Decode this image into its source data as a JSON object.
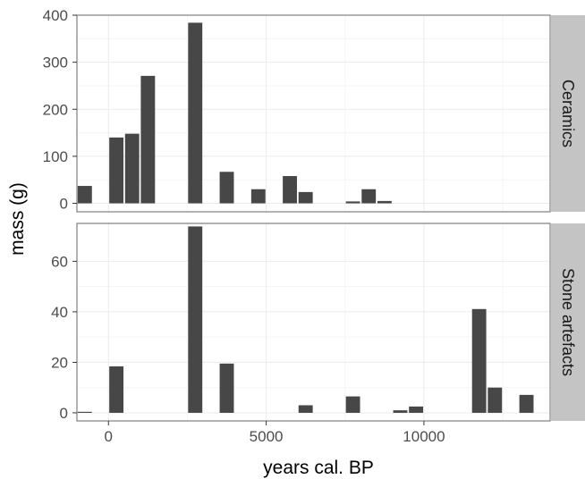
{
  "colors": {
    "panel_background": "#ffffff",
    "panel_border": "#7f7f7f",
    "grid_major": "#ebebeb",
    "grid_minor": "#f5f5f5",
    "bar_fill": "#474747",
    "strip_background": "#c4c4c4"
  },
  "chart_data": {
    "type": "bar",
    "layout": "faceted, two panels stacked vertically, shared x axis, free y axes",
    "grid": true,
    "legend": "none",
    "xlabel": "years cal. BP",
    "ylabel": "mass (g)",
    "xlim": [
      -1000,
      14000
    ],
    "x_ticks": [
      0,
      5000,
      10000
    ],
    "x_tick_labels": [
      "0",
      "5000",
      "10000"
    ],
    "bin_width": 500,
    "facets": [
      {
        "name": "Ceramics",
        "ylim": [
          -18,
          400
        ],
        "y_ticks": [
          0,
          100,
          200,
          300,
          400
        ],
        "y_tick_labels": [
          "0",
          "100",
          "200",
          "300",
          "400"
        ],
        "x": [
          -750,
          250,
          750,
          1250,
          2750,
          3750,
          4750,
          5750,
          6250,
          7750,
          8250,
          8750
        ],
        "values": [
          37,
          140,
          148,
          271,
          384,
          67,
          30,
          58,
          24,
          4,
          30,
          5
        ]
      },
      {
        "name": "Stone artefacts",
        "ylim": [
          -3.2,
          75
        ],
        "y_ticks": [
          0,
          20,
          40,
          60
        ],
        "y_tick_labels": [
          "0",
          "20",
          "40",
          "60"
        ],
        "x": [
          -750,
          250,
          2750,
          3750,
          6250,
          7750,
          9250,
          9750,
          11750,
          12250,
          13250
        ],
        "values": [
          0.4,
          18.4,
          73.8,
          19.5,
          3,
          6.5,
          1,
          2.5,
          41.1,
          10,
          7.1
        ]
      }
    ]
  }
}
